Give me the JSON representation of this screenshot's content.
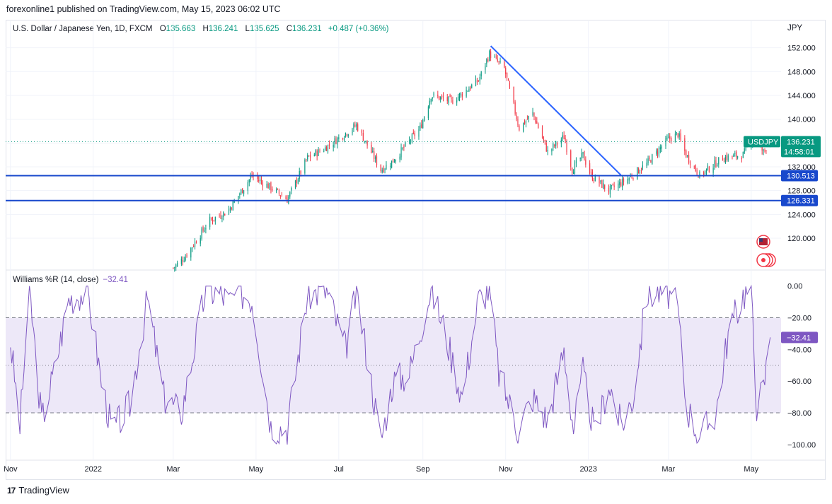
{
  "header": {
    "published": "forexonline1 published on TradingView.com, May 15, 2023 06:02 UTC"
  },
  "legend": {
    "symbol": "U.S. Dollar / Japanese Yen, 1D, FXCM",
    "o_label": "O",
    "o_value": "135.663",
    "h_label": "H",
    "h_value": "136.241",
    "l_label": "L",
    "l_value": "135.625",
    "c_label": "C",
    "c_value": "136.231",
    "change": "+0.487 (+0.36%)"
  },
  "currency": "JPY",
  "indicator": {
    "name": "Williams %R (14, close)",
    "value": "−32.41"
  },
  "footer": {
    "brand": "TradingView",
    "mark": "17"
  },
  "colors": {
    "up": "#089981",
    "down": "#f23645",
    "trendline": "#2962ff",
    "hline": "#1848cc",
    "wr_line": "#7e57c2",
    "wr_band": "#ede8f8",
    "price_tag": "#089981",
    "level_tag": "#1848cc",
    "wr_tag": "#7e57c2"
  },
  "chart_data": [
    {
      "type": "candlestick",
      "title": "U.S. Dollar / Japanese Yen, 1D, FXCM",
      "y_axis_label": "JPY",
      "ylim": [
        114.9,
        154.8
      ],
      "y_ticks": [
        120,
        124,
        128,
        132,
        136,
        140,
        144,
        148,
        152
      ],
      "y_tick_labels": [
        "120.000",
        "124.000",
        "128.000",
        "132.000",
        "",
        "140.000",
        "144.000",
        "148.000",
        "152.000"
      ],
      "x_range": [
        "2021-10-29",
        "2023-05-23"
      ],
      "x_ticks": [
        {
          "date": "2021-11-01",
          "label": "Nov"
        },
        {
          "date": "2022-01-01",
          "label": "2022"
        },
        {
          "date": "2022-03-01",
          "label": "Mar"
        },
        {
          "date": "2022-05-01",
          "label": "May"
        },
        {
          "date": "2022-07-01",
          "label": "Jul"
        },
        {
          "date": "2022-09-01",
          "label": "Sep"
        },
        {
          "date": "2022-11-01",
          "label": "Nov"
        },
        {
          "date": "2023-01-01",
          "label": "2023"
        },
        {
          "date": "2023-03-01",
          "label": "Mar"
        },
        {
          "date": "2023-05-01",
          "label": "May"
        }
      ],
      "anchors": [
        [
          "2022-03-01",
          115.0
        ],
        [
          "2022-03-10",
          117.0
        ],
        [
          "2022-03-28",
          123.0
        ],
        [
          "2022-04-10",
          124.5
        ],
        [
          "2022-04-28",
          130.5
        ],
        [
          "2022-05-12",
          128.5
        ],
        [
          "2022-05-24",
          126.5
        ],
        [
          "2022-06-08",
          133.5
        ],
        [
          "2022-06-20",
          135.0
        ],
        [
          "2022-06-29",
          136.5
        ],
        [
          "2022-07-14",
          139.0
        ],
        [
          "2022-08-01",
          131.5
        ],
        [
          "2022-08-10",
          133.0
        ],
        [
          "2022-08-30",
          138.5
        ],
        [
          "2022-09-07",
          144.0
        ],
        [
          "2022-09-22",
          143.0
        ],
        [
          "2022-10-01",
          144.5
        ],
        [
          "2022-10-12",
          146.5
        ],
        [
          "2022-10-20",
          151.0
        ],
        [
          "2022-10-31",
          148.5
        ],
        [
          "2022-11-11",
          138.5
        ],
        [
          "2022-11-21",
          141.0
        ],
        [
          "2022-12-02",
          134.5
        ],
        [
          "2022-12-14",
          137.0
        ],
        [
          "2022-12-20",
          131.5
        ],
        [
          "2022-12-28",
          134.0
        ],
        [
          "2023-01-03",
          130.5
        ],
        [
          "2023-01-16",
          128.0
        ],
        [
          "2023-01-30",
          130.0
        ],
        [
          "2023-02-13",
          132.5
        ],
        [
          "2023-02-28",
          136.5
        ],
        [
          "2023-03-08",
          137.5
        ],
        [
          "2023-03-14",
          134.0
        ],
        [
          "2023-03-24",
          130.5
        ],
        [
          "2023-04-10",
          133.5
        ],
        [
          "2023-04-25",
          134.0
        ],
        [
          "2023-05-02",
          137.0
        ],
        [
          "2023-05-10",
          134.5
        ],
        [
          "2023-05-15",
          136.231
        ]
      ],
      "current_price": {
        "value": 136.231,
        "label": "USDJPY",
        "price": "136.231",
        "countdown": "14:58:01"
      },
      "horizontal_lines": [
        {
          "value": 130.513,
          "label": "130.513"
        },
        {
          "value": 126.331,
          "label": "126.331"
        }
      ],
      "trendline": {
        "from": [
          "2022-10-21",
          152.3
        ],
        "to": [
          "2023-01-25",
          130.6
        ]
      }
    },
    {
      "type": "line",
      "title": "Williams %R (14, close)",
      "ylim": [
        -105,
        3
      ],
      "y_ticks": [
        0,
        -20,
        -40,
        -60,
        -80,
        -100
      ],
      "y_tick_labels": [
        "0.00",
        "−20.00",
        "−40.00",
        "−60.00",
        "−80.00",
        "−100.00"
      ],
      "band": [
        -80,
        -20
      ],
      "midline": -50,
      "current_value": {
        "value": -32.41,
        "label": "−32.41"
      },
      "anchors": [
        [
          "2021-11-01",
          -35
        ],
        [
          "2021-11-08",
          -88
        ],
        [
          "2021-11-15",
          -2
        ],
        [
          "2021-11-24",
          -85
        ],
        [
          "2021-12-03",
          -55
        ],
        [
          "2021-12-14",
          -8
        ],
        [
          "2021-12-28",
          -3
        ],
        [
          "2022-01-07",
          -60
        ],
        [
          "2022-01-15",
          -92
        ],
        [
          "2022-01-28",
          -75
        ],
        [
          "2022-02-10",
          -8
        ],
        [
          "2022-02-22",
          -70
        ],
        [
          "2022-03-07",
          -80
        ],
        [
          "2022-03-25",
          -2
        ],
        [
          "2022-04-05",
          -5
        ],
        [
          "2022-04-12",
          -10
        ],
        [
          "2022-04-18",
          -3
        ],
        [
          "2022-04-28",
          -8
        ],
        [
          "2022-05-12",
          -88
        ],
        [
          "2022-05-24",
          -90
        ],
        [
          "2022-06-08",
          -5
        ],
        [
          "2022-06-22",
          -3
        ],
        [
          "2022-07-06",
          -40
        ],
        [
          "2022-07-14",
          -3
        ],
        [
          "2022-08-01",
          -98
        ],
        [
          "2022-08-10",
          -60
        ],
        [
          "2022-08-22",
          -55
        ],
        [
          "2022-09-07",
          -2
        ],
        [
          "2022-09-16",
          -25
        ],
        [
          "2022-09-30",
          -70
        ],
        [
          "2022-10-12",
          -8
        ],
        [
          "2022-10-20",
          -2
        ],
        [
          "2022-10-27",
          -55
        ],
        [
          "2022-11-10",
          -90
        ],
        [
          "2022-11-21",
          -70
        ],
        [
          "2022-12-02",
          -85
        ],
        [
          "2022-12-14",
          -40
        ],
        [
          "2022-12-21",
          -90
        ],
        [
          "2022-12-28",
          -55
        ],
        [
          "2023-01-06",
          -95
        ],
        [
          "2023-01-16",
          -60
        ],
        [
          "2023-01-25",
          -88
        ],
        [
          "2023-02-03",
          -70
        ],
        [
          "2023-02-13",
          -5
        ],
        [
          "2023-02-28",
          -3
        ],
        [
          "2023-03-08",
          -15
        ],
        [
          "2023-03-14",
          -75
        ],
        [
          "2023-03-24",
          -95
        ],
        [
          "2023-04-05",
          -80
        ],
        [
          "2023-04-14",
          -30
        ],
        [
          "2023-04-25",
          -5
        ],
        [
          "2023-05-01",
          -2
        ],
        [
          "2023-05-05",
          -75
        ],
        [
          "2023-05-10",
          -65
        ],
        [
          "2023-05-15",
          -32.41
        ]
      ]
    }
  ]
}
